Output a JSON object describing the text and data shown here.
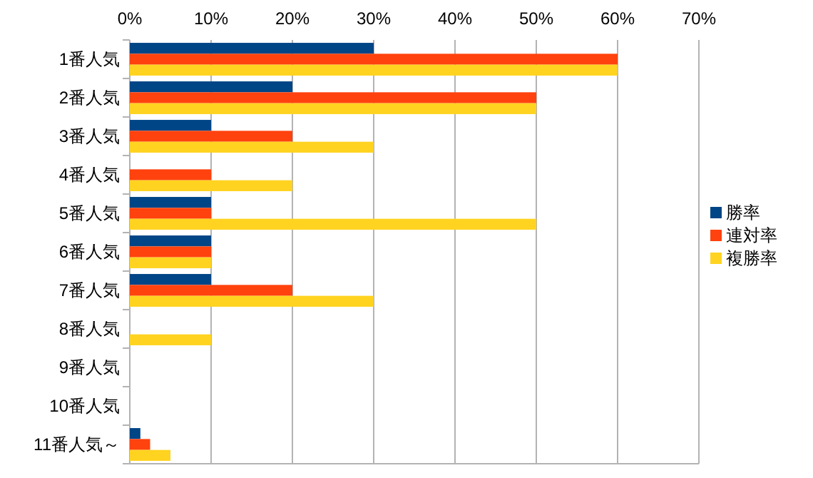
{
  "chart_data": {
    "type": "bar",
    "orientation": "horizontal",
    "categories": [
      "1番人気",
      "2番人気",
      "3番人気",
      "4番人気",
      "5番人気",
      "6番人気",
      "7番人気",
      "8番人気",
      "9番人気",
      "10番人気",
      "11番人気～"
    ],
    "series": [
      {
        "name": "勝率",
        "color": "#004586",
        "values": [
          30,
          20,
          10,
          0,
          10,
          10,
          10,
          0,
          0,
          0,
          1.3
        ]
      },
      {
        "name": "連対率",
        "color": "#ff420e",
        "values": [
          60,
          50,
          20,
          10,
          10,
          10,
          20,
          0,
          0,
          0,
          2.5
        ]
      },
      {
        "name": "複勝率",
        "color": "#ffd320",
        "values": [
          60,
          50,
          30,
          20,
          50,
          10,
          30,
          10,
          0,
          0,
          5
        ]
      }
    ],
    "xlim": [
      0,
      70
    ],
    "xticks": [
      {
        "value": 0,
        "label": "0%"
      },
      {
        "value": 10,
        "label": "10%"
      },
      {
        "value": 20,
        "label": "20%"
      },
      {
        "value": 30,
        "label": "30%"
      },
      {
        "value": 40,
        "label": "40%"
      },
      {
        "value": 50,
        "label": "50%"
      },
      {
        "value": 60,
        "label": "60%"
      },
      {
        "value": 70,
        "label": "70%"
      }
    ],
    "grid": "x",
    "legend": "right"
  }
}
